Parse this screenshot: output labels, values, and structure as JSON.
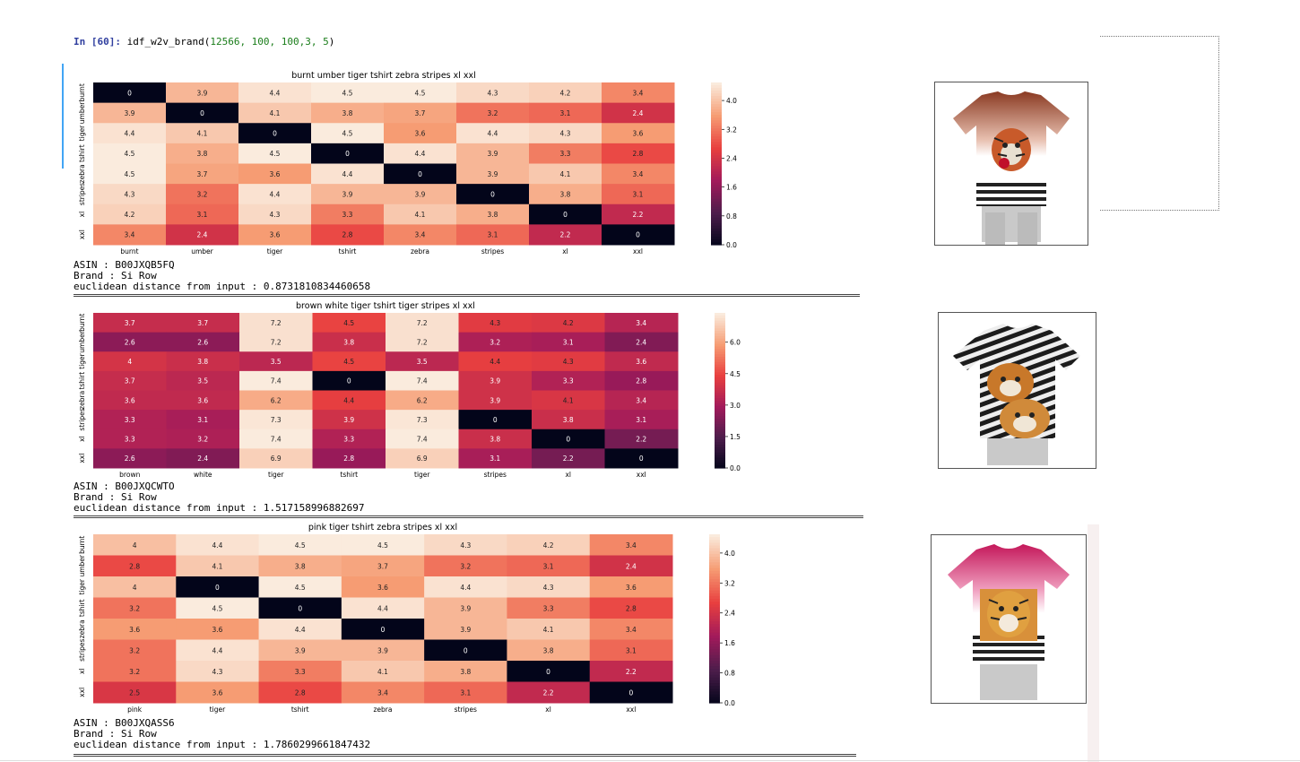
{
  "cell": {
    "prompt_label": "In [60]:",
    "code_fn": "idf_w2v_brand(",
    "code_args": "12566, 100, 100,3, 5",
    "code_close": ")"
  },
  "palette": {
    "rocket_stops": [
      "#03051a",
      "#4c1d4b",
      "#a11a5b",
      "#e83f3f",
      "#f69c73",
      "#faebdd"
    ]
  },
  "chart_data": [
    {
      "type": "heatmap",
      "title": "burnt umber tiger tshirt zebra stripes xl  xxl",
      "row_labels": [
        "burnt",
        "umber",
        "tiger",
        "tshirt",
        "zebra",
        "stripes",
        "xl",
        "xxl"
      ],
      "col_labels": [
        "burnt",
        "umber",
        "tiger",
        "tshirt",
        "zebra",
        "stripes",
        "xl",
        "xxl"
      ],
      "values": [
        [
          0,
          3.9,
          4.4,
          4.5,
          4.5,
          4.3,
          4.2,
          3.4
        ],
        [
          3.9,
          0,
          4.1,
          3.8,
          3.7,
          3.2,
          3.1,
          2.4
        ],
        [
          4.4,
          4.1,
          0,
          4.5,
          3.6,
          4.4,
          4.3,
          3.6
        ],
        [
          4.5,
          3.8,
          4.5,
          0,
          4.4,
          3.9,
          3.3,
          2.8
        ],
        [
          4.5,
          3.7,
          3.6,
          4.4,
          0,
          3.9,
          4.1,
          3.4
        ],
        [
          4.3,
          3.2,
          4.4,
          3.9,
          3.9,
          0,
          3.8,
          3.1
        ],
        [
          4.2,
          3.1,
          4.3,
          3.3,
          4.1,
          3.8,
          0,
          2.2
        ],
        [
          3.4,
          2.4,
          3.6,
          2.8,
          3.4,
          3.1,
          2.2,
          0
        ]
      ],
      "vmin": 0,
      "vmax": 4.5,
      "colorbar_ticks": [
        "0.0",
        "0.8",
        "1.6",
        "2.4",
        "3.2",
        "4.0"
      ],
      "colorbar_tick_values": [
        0,
        0.8,
        1.6,
        2.4,
        3.2,
        4.0
      ]
    },
    {
      "type": "heatmap",
      "title": "brown  white tiger tshirt tiger stripes xl  xxl",
      "row_labels": [
        "burnt",
        "umber",
        "tiger",
        "tshirt",
        "zebra",
        "stripes",
        "xl",
        "xxl"
      ],
      "col_labels": [
        "brown",
        "white",
        "tiger",
        "tshirt",
        "tiger",
        "stripes",
        "xl",
        "xxl"
      ],
      "values": [
        [
          3.7,
          3.7,
          7.2,
          4.5,
          7.2,
          4.3,
          4.2,
          3.4
        ],
        [
          2.6,
          2.6,
          7.2,
          3.8,
          7.2,
          3.2,
          3.1,
          2.4
        ],
        [
          4,
          3.8,
          3.5,
          4.5,
          3.5,
          4.4,
          4.3,
          3.6
        ],
        [
          3.7,
          3.5,
          7.4,
          0,
          7.4,
          3.9,
          3.3,
          2.8
        ],
        [
          3.6,
          3.6,
          6.2,
          4.4,
          6.2,
          3.9,
          4.1,
          3.4
        ],
        [
          3.3,
          3.1,
          7.3,
          3.9,
          7.3,
          0,
          3.8,
          3.1
        ],
        [
          3.3,
          3.2,
          7.4,
          3.3,
          7.4,
          3.8,
          0,
          2.2
        ],
        [
          2.6,
          2.4,
          6.9,
          2.8,
          6.9,
          3.1,
          2.2,
          0
        ]
      ],
      "vmin": 0,
      "vmax": 7.4,
      "colorbar_ticks": [
        "0.0",
        "1.5",
        "3.0",
        "4.5",
        "6.0"
      ],
      "colorbar_tick_values": [
        0,
        1.5,
        3.0,
        4.5,
        6.0
      ]
    },
    {
      "type": "heatmap",
      "title": "pink tiger tshirt zebra stripes xl  xxl",
      "row_labels": [
        "burnt",
        "umber",
        "tiger",
        "tshirt",
        "zebra",
        "stripes",
        "xl",
        "xxl"
      ],
      "col_labels": [
        "pink",
        "tiger",
        "tshirt",
        "zebra",
        "stripes",
        "xl",
        "xxl"
      ],
      "values": [
        [
          4,
          4.4,
          4.5,
          4.5,
          4.3,
          4.2,
          3.4
        ],
        [
          2.8,
          4.1,
          3.8,
          3.7,
          3.2,
          3.1,
          2.4
        ],
        [
          4,
          0,
          4.5,
          3.6,
          4.4,
          4.3,
          3.6
        ],
        [
          3.2,
          4.5,
          0,
          4.4,
          3.9,
          3.3,
          2.8
        ],
        [
          3.6,
          3.6,
          4.4,
          0,
          3.9,
          4.1,
          3.4
        ],
        [
          3.2,
          4.4,
          3.9,
          3.9,
          0,
          3.8,
          3.1
        ],
        [
          3.2,
          4.3,
          3.3,
          4.1,
          3.8,
          0,
          2.2
        ],
        [
          2.5,
          3.6,
          2.8,
          3.4,
          3.1,
          2.2,
          0
        ]
      ],
      "vmin": 0,
      "vmax": 4.5,
      "colorbar_ticks": [
        "0.0",
        "0.8",
        "1.6",
        "2.4",
        "3.2",
        "4.0"
      ],
      "colorbar_tick_values": [
        0,
        0.8,
        1.6,
        2.4,
        3.2,
        4.0
      ]
    }
  ],
  "results": [
    {
      "asin": "ASIN : B00JXQB5FQ",
      "brand": "Brand : Si Row",
      "distance": "euclidean distance from input : 0.8731810834460658",
      "image": "tiger-tshirt-brown-ombre"
    },
    {
      "asin": "ASIN : B00JXQCWTO",
      "brand": "Brand : Si Row",
      "distance": "euclidean distance from input : 1.517158996882697",
      "image": "tiger-tshirt-zebra-print"
    },
    {
      "asin": "ASIN : B00JXQASS6",
      "brand": "Brand : Si Row",
      "distance": "euclidean distance from input : 1.7860299661847432",
      "image": "tiger-tshirt-pink-ombre"
    }
  ]
}
